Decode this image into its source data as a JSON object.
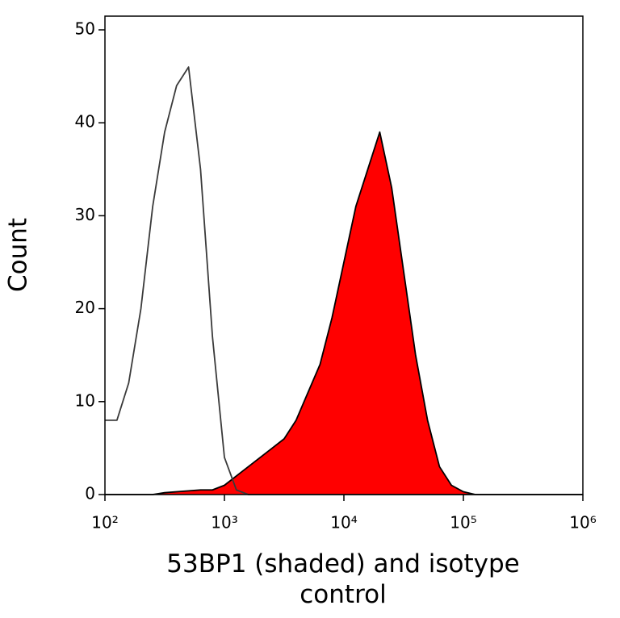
{
  "chart_data": {
    "type": "histogram",
    "x_label": "53BP1 (shaded) and isotype control",
    "y_label": "Count",
    "log_x": true,
    "xlim": [
      100,
      1000000
    ],
    "xticks": [
      {
        "value": 100,
        "label": "10²"
      },
      {
        "value": 1000,
        "label": "10³"
      },
      {
        "value": 10000,
        "label": "10⁴"
      },
      {
        "value": 100000,
        "label": "10⁵"
      },
      {
        "value": 1000000,
        "label": "10⁶"
      }
    ],
    "ylim": [
      0,
      50
    ],
    "yticks": [
      0,
      10,
      20,
      30,
      40,
      50
    ],
    "x": [
      100,
      126,
      158,
      200,
      251,
      316,
      398,
      501,
      631,
      794,
      1000,
      1259,
      1585,
      1995,
      2512,
      3162,
      3981,
      5012,
      6310,
      7943,
      10000,
      12589,
      15849,
      19953,
      25119,
      31623,
      39811,
      50119,
      63096,
      79433,
      100000,
      125893,
      158489,
      199526,
      251189,
      316228,
      398107,
      501187,
      630957,
      794328,
      1000000
    ],
    "series": [
      {
        "color": "#ff0000",
        "fill": true,
        "values": [
          0,
          0,
          0,
          0,
          0,
          0.2,
          0.3,
          0.4,
          0.5,
          0.5,
          1,
          2,
          3,
          4,
          5,
          6,
          8,
          11,
          14,
          19,
          25,
          31,
          35,
          39,
          33,
          24,
          15,
          8,
          3,
          1,
          0.3,
          0,
          0,
          0,
          0,
          0,
          0,
          0,
          0,
          0,
          0
        ]
      },
      {
        "color": "#3a3a3a",
        "fill": false,
        "values": [
          8,
          8,
          12,
          20,
          31,
          39,
          44,
          46,
          35,
          17,
          4,
          0.5,
          0,
          0,
          0,
          0,
          0,
          0,
          0,
          0,
          0,
          0,
          0,
          0,
          0,
          0,
          0,
          0,
          0,
          0,
          0,
          0,
          0,
          0,
          0,
          0,
          0,
          0,
          0,
          0,
          0
        ]
      }
    ]
  }
}
